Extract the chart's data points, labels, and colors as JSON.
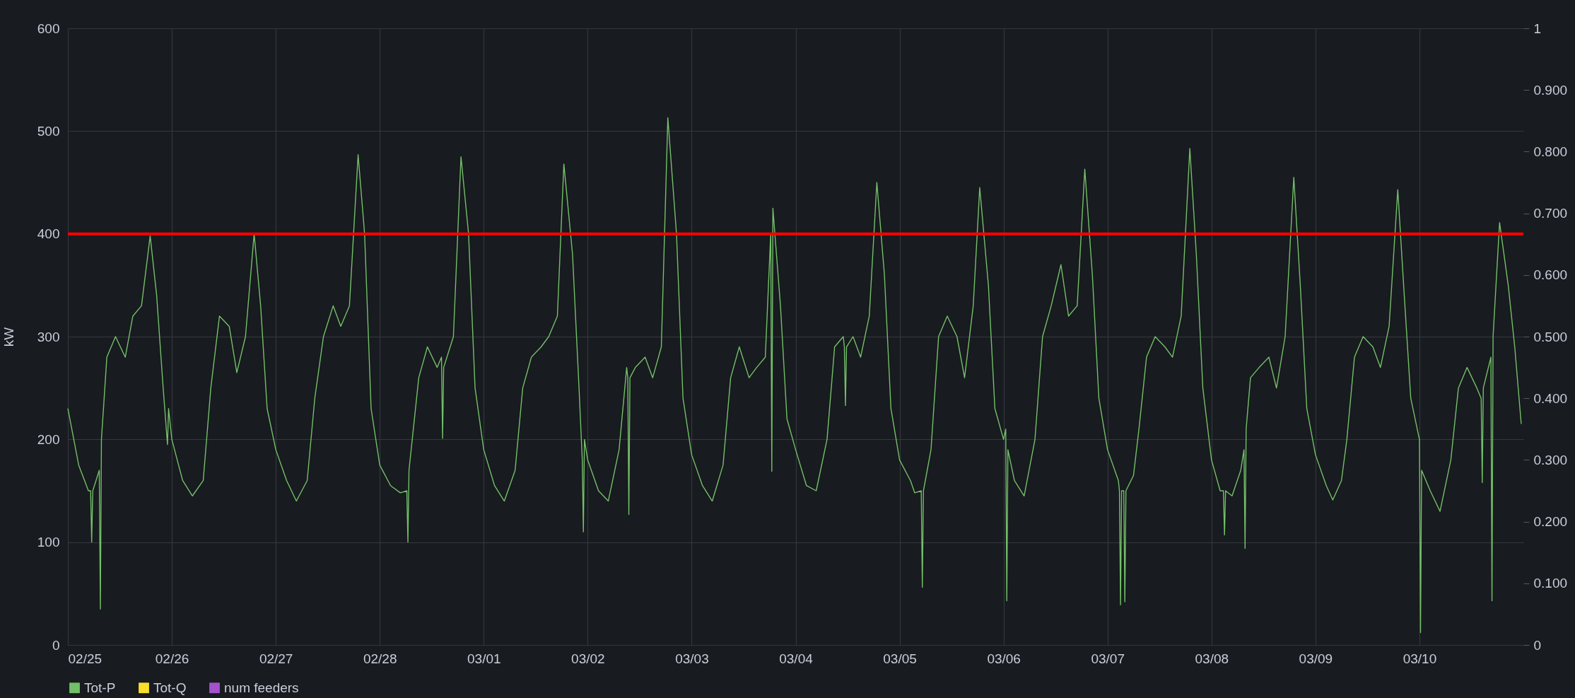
{
  "chart_data": {
    "type": "line",
    "ylabel": "kW",
    "xlim": [
      "--02-25",
      "--03-11"
    ],
    "xticks": [
      {
        "value": "--02-25",
        "label": "02/25"
      },
      {
        "value": "--02-26",
        "label": "02/26"
      },
      {
        "value": "--02-27",
        "label": "02/27"
      },
      {
        "value": "--02-28",
        "label": "02/28"
      },
      {
        "value": "--03-01",
        "label": "03/01"
      },
      {
        "value": "--03-02",
        "label": "03/02"
      },
      {
        "value": "--03-03",
        "label": "03/03"
      },
      {
        "value": "--03-04",
        "label": "03/04"
      },
      {
        "value": "--03-05",
        "label": "03/05"
      },
      {
        "value": "--03-06",
        "label": "03/06"
      },
      {
        "value": "--03-07",
        "label": "03/07"
      },
      {
        "value": "--03-08",
        "label": "03/08"
      },
      {
        "value": "--03-09",
        "label": "03/09"
      },
      {
        "value": "--03-10",
        "label": "03/10"
      }
    ],
    "ylim": [
      0,
      600
    ],
    "yticks": [
      0,
      100,
      200,
      300,
      400,
      500,
      600
    ],
    "y2lim": [
      0,
      1
    ],
    "y2ticks": [
      0,
      {
        "value": 0.1,
        "label": "0.100"
      },
      {
        "value": 0.2,
        "label": "0.200"
      },
      {
        "value": 0.3,
        "label": "0.300"
      },
      {
        "value": 0.4,
        "label": "0.400"
      },
      {
        "value": 0.5,
        "label": "0.500"
      },
      {
        "value": 0.6,
        "label": "0.600"
      },
      {
        "value": 0.7,
        "label": "0.700"
      },
      {
        "value": 0.8,
        "label": "0.800"
      },
      {
        "value": 0.9,
        "label": "0.900"
      },
      1
    ],
    "grid": true,
    "legend": "bottom",
    "ref_lines": [
      {
        "axis": "y",
        "value": 400,
        "color": "#ff0000"
      }
    ],
    "series": [
      {
        "name": "Tot-P",
        "color": "#73bf69",
        "x": [
          "--02-25T00:00",
          "--02-25T02:30",
          "--02-25T04:45",
          "--02-25T05:15",
          "--02-25T05:30",
          "--02-25T05:45",
          "--02-25T07:15",
          "--02-25T07:30",
          "--02-25T07:45",
          "--02-25T09:00",
          "--02-25T11:00",
          "--02-25T13:15",
          "--02-25T15:00",
          "--02-25T17:00",
          "--02-25T19:00",
          "--02-25T20:30",
          "--02-25T22:00",
          "--02-25T23:00",
          "--02-25T23:15",
          "--02-26T00:00",
          "--02-26T02:30",
          "--02-26T04:45",
          "--02-26T07:15",
          "--02-26T09:00",
          "--02-26T11:00",
          "--02-26T13:15",
          "--02-26T15:00",
          "--02-26T17:00",
          "--02-26T19:00",
          "--02-26T20:30",
          "--02-26T22:00",
          "--02-27T00:00",
          "--02-27T02:30",
          "--02-27T04:45",
          "--02-27T07:15",
          "--02-27T09:00",
          "--02-27T11:00",
          "--02-27T13:15",
          "--02-27T15:00",
          "--02-27T17:00",
          "--02-27T19:00",
          "--02-27T20:30",
          "--02-27T22:00",
          "--02-28T00:00",
          "--02-28T02:30",
          "--02-28T04:45",
          "--02-28T06:15",
          "--02-28T06:30",
          "--02-28T06:45",
          "--02-28T09:00",
          "--02-28T11:00",
          "--02-28T13:15",
          "--02-28T14:15",
          "--02-28T14:30",
          "--02-28T14:45",
          "--02-28T17:00",
          "--02-28T18:45",
          "--02-28T20:30",
          "--02-28T22:00",
          "--03-01T00:00",
          "--03-01T02:30",
          "--03-01T04:45",
          "--03-01T07:15",
          "--03-01T09:00",
          "--03-01T11:00",
          "--03-01T13:15",
          "--03-01T15:00",
          "--03-01T17:00",
          "--03-01T18:30",
          "--03-01T20:30",
          "--03-01T22:00",
          "--03-01T22:45",
          "--03-01T23:00",
          "--03-01T23:15",
          "--03-02T00:00",
          "--03-02T02:30",
          "--03-02T04:45",
          "--03-02T07:15",
          "--03-02T09:00",
          "--03-02T09:15",
          "--03-02T09:30",
          "--03-02T09:45",
          "--03-02T11:00",
          "--03-02T13:15",
          "--03-02T15:00",
          "--03-02T17:00",
          "--03-02T18:30",
          "--03-02T20:30",
          "--03-02T22:00",
          "--03-03T00:00",
          "--03-03T02:30",
          "--03-03T04:45",
          "--03-03T07:15",
          "--03-03T09:00",
          "--03-03T11:00",
          "--03-03T13:15",
          "--03-03T15:00",
          "--03-03T17:00",
          "--03-03T18:15",
          "--03-03T18:30",
          "--03-03T18:45",
          "--03-03T20:30",
          "--03-03T22:00",
          "--03-04T00:00",
          "--03-04T02:30",
          "--03-04T04:45",
          "--03-04T07:15",
          "--03-04T09:00",
          "--03-04T11:00",
          "--03-04T11:15",
          "--03-04T11:30",
          "--03-04T11:45",
          "--03-04T13:15",
          "--03-04T15:00",
          "--03-04T17:00",
          "--03-04T18:45",
          "--03-04T20:30",
          "--03-04T22:00",
          "--03-05T00:00",
          "--03-05T02:30",
          "--03-05T03:30",
          "--03-05T05:00",
          "--03-05T05:15",
          "--03-05T05:30",
          "--03-05T07:15",
          "--03-05T09:00",
          "--03-05T11:00",
          "--03-05T13:15",
          "--03-05T15:00",
          "--03-05T17:00",
          "--03-05T18:30",
          "--03-05T20:30",
          "--03-05T22:00",
          "--03-06T00:00",
          "--03-06T00:30",
          "--03-06T00:45",
          "--03-06T01:00",
          "--03-06T02:30",
          "--03-06T04:45",
          "--03-06T07:15",
          "--03-06T09:00",
          "--03-06T11:00",
          "--03-06T13:15",
          "--03-06T15:00",
          "--03-06T17:00",
          "--03-06T18:45",
          "--03-06T20:30",
          "--03-06T22:00",
          "--03-07T00:00",
          "--03-07T02:30",
          "--03-07T02:45",
          "--03-07T03:00",
          "--03-07T03:15",
          "--03-07T03:45",
          "--03-07T04:00",
          "--03-07T04:15",
          "--03-07T06:00",
          "--03-07T07:15",
          "--03-07T09:00",
          "--03-07T11:00",
          "--03-07T13:15",
          "--03-07T15:00",
          "--03-07T17:00",
          "--03-07T19:00",
          "--03-07T20:30",
          "--03-07T22:00",
          "--03-08T00:00",
          "--03-08T02:00",
          "--03-08T02:45",
          "--03-08T03:00",
          "--03-08T03:15",
          "--03-08T04:45",
          "--03-08T06:45",
          "--03-08T07:30",
          "--03-08T07:45",
          "--03-08T08:00",
          "--03-08T09:00",
          "--03-08T11:00",
          "--03-08T13:15",
          "--03-08T15:00",
          "--03-08T17:00",
          "--03-08T19:00",
          "--03-08T20:30",
          "--03-08T22:00",
          "--03-09T00:00",
          "--03-09T02:30",
          "--03-09T04:00",
          "--03-09T06:00",
          "--03-09T07:15",
          "--03-09T09:00",
          "--03-09T11:00",
          "--03-09T13:15",
          "--03-09T15:00",
          "--03-09T17:00",
          "--03-09T19:00",
          "--03-09T20:30",
          "--03-09T22:00",
          "--03-10T00:00",
          "--03-10T00:15",
          "--03-10T00:30",
          "--03-10T02:30",
          "--03-10T04:45",
          "--03-10T07:15",
          "--03-10T09:00",
          "--03-10T11:00",
          "--03-10T13:15",
          "--03-10T14:15",
          "--03-10T14:30",
          "--03-10T14:45",
          "--03-10T16:30",
          "--03-10T16:45",
          "--03-10T17:00",
          "--03-10T18:30",
          "--03-10T20:30",
          "--03-10T22:00",
          "--03-10T23:30"
        ],
        "values": [
          230,
          175,
          150,
          150,
          100,
          150,
          170,
          35,
          200,
          280,
          300,
          280,
          320,
          330,
          398,
          340,
          250,
          195,
          230,
          200,
          160,
          145,
          160,
          250,
          320,
          310,
          265,
          300,
          400,
          330,
          230,
          190,
          160,
          140,
          160,
          240,
          300,
          330,
          310,
          330,
          477,
          400,
          230,
          175,
          155,
          148,
          150,
          100,
          170,
          260,
          290,
          270,
          280,
          201,
          270,
          300,
          475,
          400,
          250,
          190,
          155,
          140,
          170,
          250,
          280,
          290,
          300,
          320,
          468,
          380,
          250,
          180,
          110,
          200,
          180,
          150,
          140,
          190,
          270,
          260,
          127,
          260,
          270,
          280,
          260,
          290,
          513,
          400,
          240,
          185,
          155,
          140,
          175,
          260,
          290,
          260,
          270,
          280,
          400,
          169,
          425,
          330,
          220,
          190,
          155,
          150,
          200,
          290,
          300,
          290,
          233,
          290,
          300,
          280,
          320,
          450,
          360,
          230,
          180,
          160,
          148,
          150,
          56,
          150,
          190,
          300,
          320,
          300,
          260,
          330,
          445,
          350,
          230,
          200,
          210,
          43,
          190,
          160,
          145,
          200,
          300,
          330,
          370,
          320,
          330,
          463,
          360,
          240,
          190,
          160,
          150,
          39,
          150,
          150,
          42,
          150,
          165,
          210,
          280,
          300,
          290,
          280,
          320,
          483,
          380,
          250,
          180,
          150,
          150,
          107,
          150,
          145,
          170,
          190,
          94,
          210,
          260,
          270,
          280,
          250,
          300,
          455,
          350,
          230,
          185,
          155,
          141,
          160,
          200,
          280,
          300,
          290,
          270,
          310,
          443,
          340,
          240,
          200,
          12,
          170,
          150,
          130,
          180,
          250,
          270,
          250,
          240,
          158,
          250,
          280,
          43,
          300,
          411,
          350,
          290,
          215
        ]
      },
      {
        "name": "Tot-Q",
        "color": "#fade2a"
      },
      {
        "name": "num feeders",
        "color": "#a352cc",
        "axis": "y2"
      }
    ]
  }
}
